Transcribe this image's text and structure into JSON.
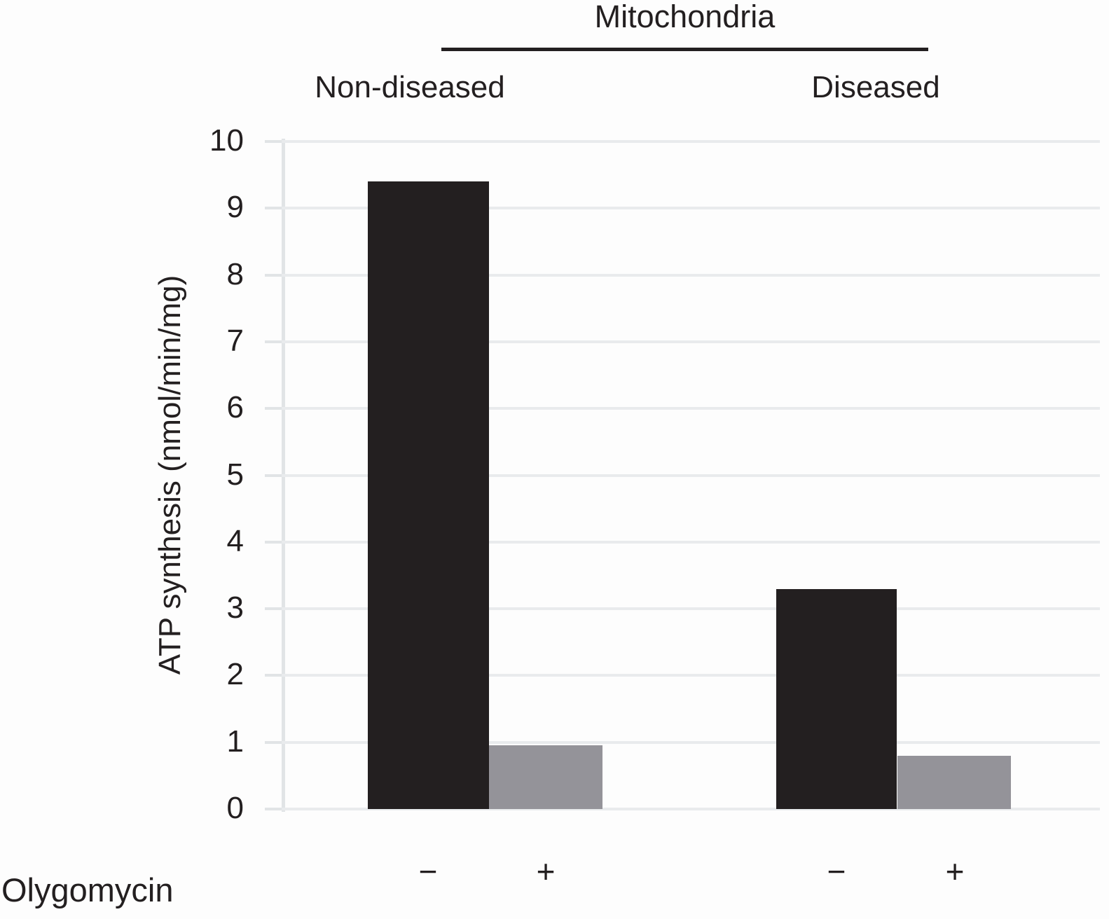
{
  "chart_data": {
    "type": "bar",
    "title": "Mitochondria",
    "ylabel": "ATP synthesis (nmol/min/mg)",
    "xlabel": "",
    "ylim": [
      0,
      10
    ],
    "yticks": [
      0,
      1,
      2,
      3,
      4,
      5,
      6,
      7,
      8,
      9,
      10
    ],
    "grid": "horizontal",
    "legend": "none",
    "row_label": "Olygomycin",
    "groups": [
      {
        "label": "Non-diseased",
        "bars": [
          {
            "condition": "−",
            "value": 9.4,
            "color": "#231f20"
          },
          {
            "condition": "+",
            "value": 0.95,
            "color": "#949399"
          }
        ]
      },
      {
        "label": "Diseased",
        "bars": [
          {
            "condition": "−",
            "value": 3.3,
            "color": "#231f20"
          },
          {
            "condition": "+",
            "value": 0.8,
            "color": "#949399"
          }
        ]
      }
    ],
    "colors": {
      "bar_minus": "#231f20",
      "bar_plus": "#949399",
      "gridline": "#e9ebed",
      "axis": "#e1e4e6",
      "text": "#231f20"
    }
  }
}
